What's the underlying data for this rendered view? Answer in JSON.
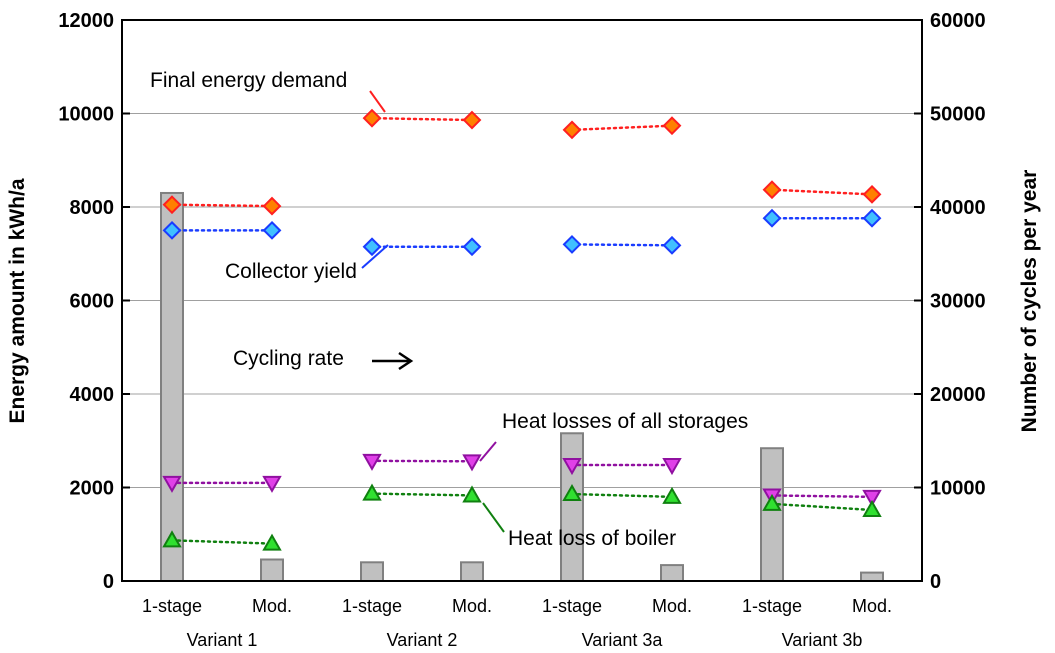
{
  "chart_data": {
    "type": "bar+scatter",
    "categories": [
      "1-stage",
      "Mod.",
      "1-stage",
      "Mod.",
      "1-stage",
      "Mod.",
      "1-stage",
      "Mod."
    ],
    "groups": [
      "Variant 1",
      "Variant 2",
      "Variant 3a",
      "Variant 3b"
    ],
    "ylabel": "Energy amount in kWh/a",
    "y2label": "Number of cycles per year",
    "ylim": [
      0,
      12000
    ],
    "y2lim": [
      0,
      60000
    ],
    "yticks": [
      "0",
      "2000",
      "4000",
      "6000",
      "8000",
      "10000",
      "12000"
    ],
    "y2ticks": [
      "0",
      "10000",
      "20000",
      "30000",
      "40000",
      "50000",
      "60000"
    ],
    "grid": true,
    "bars": {
      "axis": "right",
      "color": "#c0c0c0",
      "values": [
        41500,
        2300,
        2000,
        2000,
        15800,
        1700,
        14200,
        900
      ]
    },
    "series": [
      {
        "name": "Final energy demand",
        "marker": "diamond",
        "color": "#ff2020",
        "fill": "#ff8000",
        "values": [
          8050,
          8020,
          9900,
          9860,
          9650,
          9740,
          8370,
          8270
        ]
      },
      {
        "name": "Collector yield",
        "marker": "diamond",
        "color": "#1a3cff",
        "fill": "#40c0ff",
        "values": [
          7500,
          7500,
          7150,
          7150,
          7200,
          7180,
          7760,
          7760
        ]
      },
      {
        "name": "Heat losses of all storages",
        "marker": "triangle-down",
        "color": "#9010a0",
        "fill": "#e040e8",
        "values": [
          2100,
          2100,
          2570,
          2560,
          2480,
          2480,
          1830,
          1800
        ]
      },
      {
        "name": "Heat loss of boiler",
        "marker": "triangle-up",
        "color": "#108010",
        "fill": "#30e030",
        "values": [
          870,
          800,
          1870,
          1830,
          1860,
          1800,
          1650,
          1520
        ]
      }
    ],
    "annotations": {
      "final_energy": "Final energy demand",
      "collector": "Collector yield",
      "cycling": "Cycling rate",
      "storages": "Heat losses of all storages",
      "boiler": "Heat loss of boiler"
    }
  }
}
